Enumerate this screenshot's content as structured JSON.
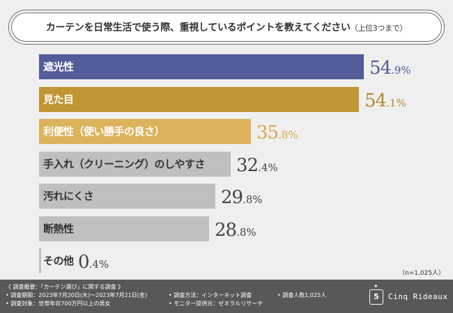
{
  "title": {
    "main": "カーテンを日常生活で使う際、重視しているポイントを教えてください",
    "sub": "（上位3つまで）"
  },
  "sample_size": "（n=1,025人）",
  "chart_data": {
    "type": "bar",
    "orientation": "horizontal",
    "title": "カーテンを日常生活で使う際、重視しているポイントを教えてください（上位3つまで）",
    "unit": "%",
    "xlim": [
      0,
      60
    ],
    "categories": [
      "遮光性",
      "見た目",
      "利便性（使い勝手の良さ）",
      "手入れ（クリーニング）のしやすさ",
      "汚れにくさ",
      "断熱性",
      "その他"
    ],
    "values": [
      54.9,
      54.1,
      35.8,
      32.4,
      29.8,
      28.8,
      0.4
    ],
    "bar_colors": [
      "#525c9a",
      "#bf9633",
      "#dbb35b",
      "#bfbfbf",
      "#bfbfbf",
      "#bfbfbf",
      "#bfbfbf"
    ],
    "label_colors": [
      "#ffffff",
      "#ffffff",
      "#ffffff",
      "#333333",
      "#333333",
      "#333333",
      "#333333"
    ],
    "value_colors": [
      "#525c9a",
      "#b48a2c",
      "#d6aa4a",
      "#444444",
      "#444444",
      "#444444",
      "#444444"
    ]
  },
  "footer": {
    "overview": "《 調査概要：「カーテン選び」に関する調査 》",
    "period": "• 調査期間：2023年7月20日(木)～2023年7月21日(金)",
    "target": "• 調査対象：世帯年収700万円以上の男女",
    "method": "• 調査方法：インターネット調査",
    "provider": "• モニター提供元：ゼネラルリサーチ",
    "count": "• 調査人数1,025人",
    "brand": "Cinq Rideaux",
    "badge": "5"
  }
}
